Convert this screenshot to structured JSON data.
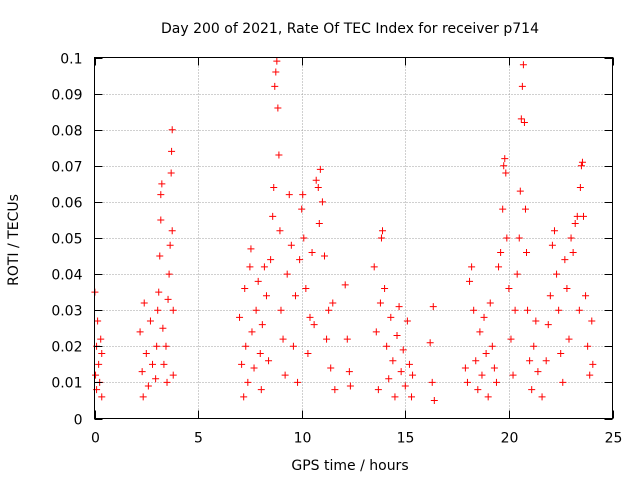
{
  "chart_data": {
    "type": "scatter",
    "title": "Day 200 of 2021, Rate Of TEC Index for receiver p714",
    "xlabel": "GPS time / hours",
    "ylabel": "ROTI / TECUs",
    "xlim": [
      0,
      25
    ],
    "ylim": [
      0,
      0.1
    ],
    "xticks": [
      "0",
      "5",
      "10",
      "15",
      "20",
      "25"
    ],
    "yticks": [
      "0",
      "0.01",
      "0.02",
      "0.03",
      "0.04",
      "0.05",
      "0.06",
      "0.07",
      "0.08",
      "0.09",
      "0.1"
    ],
    "grid": true,
    "marker": "+",
    "color": "#ff0000",
    "points": [
      [
        0.02,
        0.035
      ],
      [
        0.05,
        0.012
      ],
      [
        0.1,
        0.02
      ],
      [
        0.1,
        0.008
      ],
      [
        0.15,
        0.027
      ],
      [
        0.2,
        0.015
      ],
      [
        0.25,
        0.01
      ],
      [
        0.3,
        0.022
      ],
      [
        0.35,
        0.006
      ],
      [
        0.35,
        0.018
      ],
      [
        2.2,
        0.024
      ],
      [
        2.3,
        0.013
      ],
      [
        2.35,
        0.006
      ],
      [
        2.4,
        0.032
      ],
      [
        2.5,
        0.018
      ],
      [
        2.6,
        0.009
      ],
      [
        2.7,
        0.027
      ],
      [
        2.8,
        0.015
      ],
      [
        2.95,
        0.011
      ],
      [
        3.0,
        0.02
      ],
      [
        3.05,
        0.03
      ],
      [
        3.1,
        0.035
      ],
      [
        3.15,
        0.045
      ],
      [
        3.2,
        0.055
      ],
      [
        3.2,
        0.062
      ],
      [
        3.25,
        0.065
      ],
      [
        3.3,
        0.025
      ],
      [
        3.35,
        0.015
      ],
      [
        3.45,
        0.02
      ],
      [
        3.5,
        0.01
      ],
      [
        3.55,
        0.033
      ],
      [
        3.6,
        0.04
      ],
      [
        3.65,
        0.048
      ],
      [
        3.7,
        0.068
      ],
      [
        3.72,
        0.074
      ],
      [
        3.75,
        0.08
      ],
      [
        3.75,
        0.052
      ],
      [
        3.8,
        0.03
      ],
      [
        3.8,
        0.012
      ],
      [
        7.0,
        0.028
      ],
      [
        7.1,
        0.015
      ],
      [
        7.2,
        0.006
      ],
      [
        7.25,
        0.036
      ],
      [
        7.3,
        0.02
      ],
      [
        7.4,
        0.01
      ],
      [
        7.5,
        0.042
      ],
      [
        7.55,
        0.047
      ],
      [
        7.6,
        0.024
      ],
      [
        7.7,
        0.014
      ],
      [
        7.8,
        0.03
      ],
      [
        7.9,
        0.038
      ],
      [
        8.0,
        0.018
      ],
      [
        8.05,
        0.008
      ],
      [
        8.1,
        0.026
      ],
      [
        8.2,
        0.042
      ],
      [
        8.3,
        0.034
      ],
      [
        8.4,
        0.016
      ],
      [
        8.5,
        0.044
      ],
      [
        8.6,
        0.056
      ],
      [
        8.65,
        0.064
      ],
      [
        8.7,
        0.092
      ],
      [
        8.75,
        0.096
      ],
      [
        8.8,
        0.099
      ],
      [
        8.85,
        0.086
      ],
      [
        8.9,
        0.073
      ],
      [
        8.95,
        0.052
      ],
      [
        9.0,
        0.03
      ],
      [
        9.1,
        0.022
      ],
      [
        9.2,
        0.012
      ],
      [
        9.3,
        0.04
      ],
      [
        9.4,
        0.062
      ],
      [
        9.5,
        0.048
      ],
      [
        9.6,
        0.02
      ],
      [
        9.7,
        0.034
      ],
      [
        9.8,
        0.01
      ],
      [
        9.9,
        0.044
      ],
      [
        10.0,
        0.058
      ],
      [
        10.05,
        0.062
      ],
      [
        10.1,
        0.05
      ],
      [
        10.2,
        0.036
      ],
      [
        10.3,
        0.018
      ],
      [
        10.4,
        0.028
      ],
      [
        10.5,
        0.046
      ],
      [
        10.6,
        0.026
      ],
      [
        10.7,
        0.066
      ],
      [
        10.8,
        0.064
      ],
      [
        10.85,
        0.054
      ],
      [
        10.9,
        0.069
      ],
      [
        11.0,
        0.06
      ],
      [
        11.1,
        0.045
      ],
      [
        11.2,
        0.022
      ],
      [
        11.3,
        0.03
      ],
      [
        11.4,
        0.014
      ],
      [
        11.5,
        0.032
      ],
      [
        11.6,
        0.008
      ],
      [
        12.1,
        0.037
      ],
      [
        12.2,
        0.022
      ],
      [
        12.3,
        0.013
      ],
      [
        12.35,
        0.009
      ],
      [
        13.5,
        0.042
      ],
      [
        13.6,
        0.024
      ],
      [
        13.7,
        0.008
      ],
      [
        13.8,
        0.032
      ],
      [
        13.85,
        0.05
      ],
      [
        13.9,
        0.052
      ],
      [
        14.0,
        0.036
      ],
      [
        14.1,
        0.02
      ],
      [
        14.2,
        0.011
      ],
      [
        14.3,
        0.028
      ],
      [
        14.4,
        0.016
      ],
      [
        14.5,
        0.006
      ],
      [
        14.6,
        0.023
      ],
      [
        14.7,
        0.031
      ],
      [
        14.8,
        0.013
      ],
      [
        14.9,
        0.019
      ],
      [
        15.0,
        0.009
      ],
      [
        15.1,
        0.027
      ],
      [
        15.2,
        0.015
      ],
      [
        15.3,
        0.006
      ],
      [
        15.35,
        0.012
      ],
      [
        16.2,
        0.021
      ],
      [
        16.3,
        0.01
      ],
      [
        16.35,
        0.031
      ],
      [
        16.4,
        0.005
      ],
      [
        17.9,
        0.014
      ],
      [
        18.0,
        0.01
      ],
      [
        18.1,
        0.038
      ],
      [
        18.2,
        0.042
      ],
      [
        18.3,
        0.03
      ],
      [
        18.4,
        0.016
      ],
      [
        18.5,
        0.008
      ],
      [
        18.6,
        0.024
      ],
      [
        18.7,
        0.012
      ],
      [
        18.8,
        0.028
      ],
      [
        18.9,
        0.018
      ],
      [
        19.0,
        0.006
      ],
      [
        19.1,
        0.032
      ],
      [
        19.2,
        0.02
      ],
      [
        19.3,
        0.014
      ],
      [
        19.4,
        0.01
      ],
      [
        19.5,
        0.042
      ],
      [
        19.6,
        0.046
      ],
      [
        19.7,
        0.058
      ],
      [
        19.75,
        0.07
      ],
      [
        19.8,
        0.072
      ],
      [
        19.85,
        0.068
      ],
      [
        19.9,
        0.05
      ],
      [
        20.0,
        0.036
      ],
      [
        20.1,
        0.022
      ],
      [
        20.2,
        0.012
      ],
      [
        20.3,
        0.03
      ],
      [
        20.4,
        0.04
      ],
      [
        20.5,
        0.05
      ],
      [
        20.55,
        0.063
      ],
      [
        20.6,
        0.083
      ],
      [
        20.65,
        0.092
      ],
      [
        20.7,
        0.098
      ],
      [
        20.75,
        0.082
      ],
      [
        20.8,
        0.058
      ],
      [
        20.85,
        0.046
      ],
      [
        20.9,
        0.03
      ],
      [
        21.0,
        0.016
      ],
      [
        21.1,
        0.008
      ],
      [
        21.2,
        0.02
      ],
      [
        21.3,
        0.027
      ],
      [
        21.4,
        0.013
      ],
      [
        21.6,
        0.006
      ],
      [
        21.8,
        0.016
      ],
      [
        21.9,
        0.026
      ],
      [
        22.0,
        0.034
      ],
      [
        22.1,
        0.048
      ],
      [
        22.2,
        0.052
      ],
      [
        22.3,
        0.04
      ],
      [
        22.4,
        0.03
      ],
      [
        22.5,
        0.018
      ],
      [
        22.6,
        0.01
      ],
      [
        22.7,
        0.044
      ],
      [
        22.8,
        0.036
      ],
      [
        22.9,
        0.022
      ],
      [
        23.0,
        0.05
      ],
      [
        23.1,
        0.046
      ],
      [
        23.2,
        0.054
      ],
      [
        23.3,
        0.056
      ],
      [
        23.4,
        0.03
      ],
      [
        23.45,
        0.064
      ],
      [
        23.5,
        0.07
      ],
      [
        23.55,
        0.071
      ],
      [
        23.6,
        0.056
      ],
      [
        23.7,
        0.034
      ],
      [
        23.8,
        0.02
      ],
      [
        23.9,
        0.012
      ],
      [
        24.0,
        0.027
      ],
      [
        24.05,
        0.015
      ]
    ]
  }
}
